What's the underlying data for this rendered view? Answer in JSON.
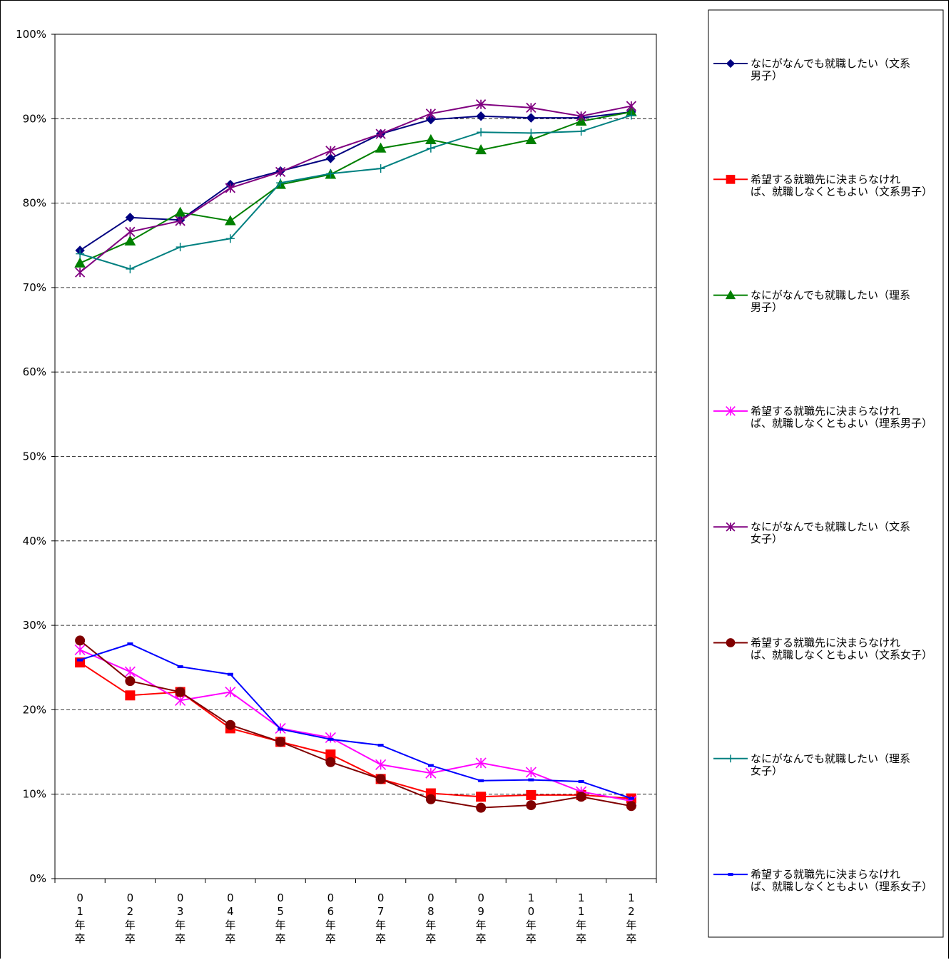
{
  "chart_data": {
    "type": "line",
    "categories": [
      [
        "0",
        "1",
        "年",
        "卒"
      ],
      [
        "0",
        "2",
        "年",
        "卒"
      ],
      [
        "0",
        "3",
        "年",
        "卒"
      ],
      [
        "0",
        "4",
        "年",
        "卒"
      ],
      [
        "0",
        "5",
        "年",
        "卒"
      ],
      [
        "0",
        "6",
        "年",
        "卒"
      ],
      [
        "0",
        "7",
        "年",
        "卒"
      ],
      [
        "0",
        "8",
        "年",
        "卒"
      ],
      [
        "0",
        "9",
        "年",
        "卒"
      ],
      [
        "1",
        "0",
        "年",
        "卒"
      ],
      [
        "1",
        "1",
        "年",
        "卒"
      ],
      [
        "1",
        "2",
        "年",
        "卒"
      ]
    ],
    "ylim": [
      0,
      100
    ],
    "yticks": [
      0,
      10,
      20,
      30,
      40,
      50,
      60,
      70,
      80,
      90,
      100
    ],
    "ytick_labels": [
      "0%",
      "10%",
      "20%",
      "30%",
      "40%",
      "50%",
      "60%",
      "70%",
      "80%",
      "90%",
      "100%"
    ],
    "grid": "horizontal dashed",
    "legend_position": "right",
    "series": [
      {
        "name": "なにがなんでも就職したい（文系男子）",
        "legend_lines": [
          "なにがなんでも就職したい（文系",
          "男子）"
        ],
        "color": "#000080",
        "marker": "diamond",
        "values": [
          74.4,
          78.3,
          78.0,
          82.2,
          83.8,
          85.3,
          88.2,
          89.9,
          90.3,
          90.1,
          90.1,
          90.8
        ]
      },
      {
        "name": "希望する就職先に決まらなければ、就職しなくともよい（文系男子）",
        "legend_lines": [
          "希望する就職先に決まらなけれ",
          "ば、就職しなくともよい（文系男子）"
        ],
        "color": "#ff0000",
        "marker": "square",
        "values": [
          25.6,
          21.7,
          22.1,
          17.8,
          16.2,
          14.7,
          11.8,
          10.1,
          9.7,
          9.9,
          9.9,
          9.5
        ]
      },
      {
        "name": "なにがなんでも就職したい（理系男子）",
        "legend_lines": [
          "なにがなんでも就職したい（理系",
          "男子）"
        ],
        "color": "#008000",
        "marker": "triangle",
        "values": [
          72.9,
          75.5,
          78.9,
          77.9,
          82.2,
          83.4,
          86.5,
          87.5,
          86.3,
          87.5,
          89.7,
          90.8
        ]
      },
      {
        "name": "希望する就職先に決まらなければ、就職しなくともよい（理系男子）",
        "legend_lines": [
          "希望する就職先に決まらなけれ",
          "ば、就職しなくともよい（理系男子）"
        ],
        "color": "#ff00ff",
        "marker": "asterisk",
        "values": [
          27.1,
          24.5,
          21.1,
          22.1,
          17.8,
          16.7,
          13.5,
          12.5,
          13.7,
          12.6,
          10.3,
          9.2
        ]
      },
      {
        "name": "なにがなんでも就職したい（文系女子）",
        "legend_lines": [
          "なにがなんでも就職したい（文系",
          "女子）"
        ],
        "color": "#800080",
        "marker": "star",
        "values": [
          71.8,
          76.6,
          77.9,
          81.8,
          83.7,
          86.2,
          88.2,
          90.6,
          91.7,
          91.3,
          90.3,
          91.5
        ]
      },
      {
        "name": "希望する就職先に決まらなければ、就職しなくともよい（文系女子）",
        "legend_lines": [
          "希望する就職先に決まらなけれ",
          "ば、就職しなくともよい（文系女子）"
        ],
        "color": "#800000",
        "marker": "circle",
        "values": [
          28.2,
          23.4,
          22.1,
          18.2,
          16.2,
          13.8,
          11.8,
          9.4,
          8.4,
          8.7,
          9.7,
          8.6
        ]
      },
      {
        "name": "なにがなんでも就職したい（理系女子）",
        "legend_lines": [
          "なにがなんでも就職したい（理系",
          "女子）"
        ],
        "color": "#008080",
        "marker": "plus",
        "values": [
          74.0,
          72.2,
          74.8,
          75.8,
          82.4,
          83.5,
          84.1,
          86.5,
          88.4,
          88.3,
          88.5,
          90.4
        ]
      },
      {
        "name": "希望する就職先に決まらなければ、就職しなくともよい（理系女子）",
        "legend_lines": [
          "希望する就職先に決まらなけれ",
          "ば、就職しなくともよい（理系女子）"
        ],
        "color": "#0000ff",
        "marker": "dash",
        "values": [
          25.9,
          27.8,
          25.1,
          24.2,
          17.7,
          16.5,
          15.8,
          13.4,
          11.6,
          11.7,
          11.5,
          9.5
        ]
      }
    ]
  }
}
